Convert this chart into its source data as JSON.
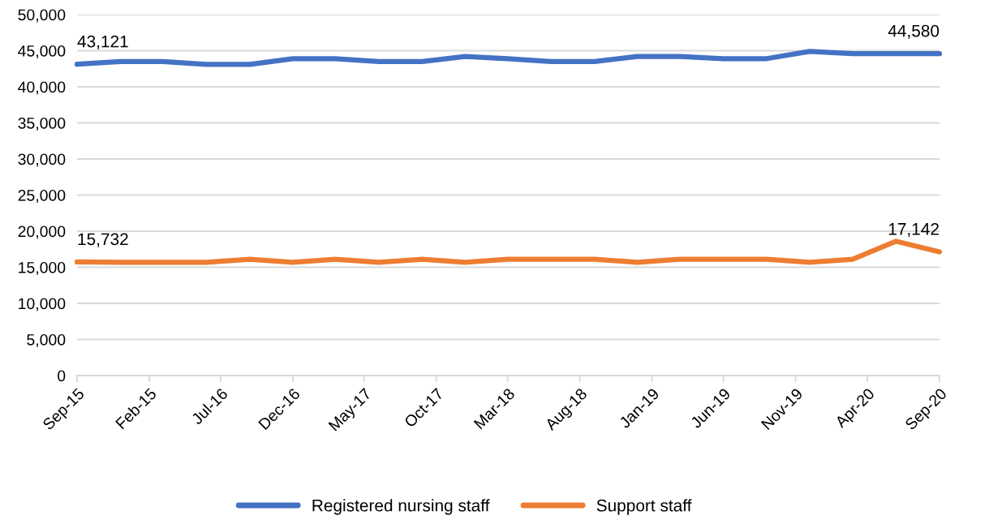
{
  "chart_data": {
    "type": "line",
    "x": [
      "2015-09",
      "2015-12",
      "2016-03",
      "2016-06",
      "2016-09",
      "2016-12",
      "2017-03",
      "2017-06",
      "2017-09",
      "2017-12",
      "2018-03",
      "2018-06",
      "2018-09",
      "2018-12",
      "2019-03",
      "2019-06",
      "2019-09",
      "2019-12",
      "2020-03",
      "2020-06",
      "2020-09"
    ],
    "series": [
      {
        "name": "Registered nursing staff",
        "color": "#4472c4",
        "values": [
          43121,
          43500,
          43500,
          43100,
          43100,
          43900,
          43900,
          43500,
          43500,
          44200,
          43900,
          43500,
          43500,
          44200,
          44200,
          43900,
          43900,
          44900,
          44600,
          44600,
          44580
        ],
        "value_labels": [
          "43,121",
          null,
          null,
          null,
          null,
          null,
          null,
          null,
          null,
          null,
          null,
          null,
          null,
          null,
          null,
          null,
          null,
          null,
          null,
          null,
          "44,580"
        ]
      },
      {
        "name": "Support staff",
        "color": "#ed7d31",
        "values": [
          15732,
          15700,
          15700,
          15700,
          16100,
          15700,
          16100,
          15700,
          16100,
          15700,
          16100,
          16100,
          16100,
          15700,
          16100,
          16100,
          16100,
          15700,
          16100,
          18600,
          17142
        ],
        "value_labels": [
          "15,732",
          null,
          null,
          null,
          null,
          null,
          null,
          null,
          null,
          null,
          null,
          null,
          null,
          null,
          null,
          null,
          null,
          null,
          null,
          null,
          "17,142"
        ]
      }
    ],
    "xlim": [
      "2015-09",
      "2020-09"
    ],
    "xticks": [
      {
        "value": "2015-09",
        "label": "Sep-15"
      },
      {
        "value": "2016-02",
        "label": "Feb-15"
      },
      {
        "value": "2016-07",
        "label": "Jul-16"
      },
      {
        "value": "2016-12",
        "label": "Dec-16"
      },
      {
        "value": "2017-05",
        "label": "May-17"
      },
      {
        "value": "2017-10",
        "label": "Oct-17"
      },
      {
        "value": "2018-03",
        "label": "Mar-18"
      },
      {
        "value": "2018-08",
        "label": "Aug-18"
      },
      {
        "value": "2019-01",
        "label": "Jan-19"
      },
      {
        "value": "2019-06",
        "label": "Jun-19"
      },
      {
        "value": "2019-11",
        "label": "Nov-19"
      },
      {
        "value": "2020-04",
        "label": "Apr-20"
      },
      {
        "value": "2020-09",
        "label": "Sep-20"
      }
    ],
    "ylim": [
      0,
      50000
    ],
    "yticks": [
      0,
      {
        "value": 5000,
        "label": "5,000"
      },
      {
        "value": 10000,
        "label": "10,000"
      },
      {
        "value": 15000,
        "label": "15,000"
      },
      {
        "value": 20000,
        "label": "20,000"
      },
      {
        "value": 25000,
        "label": "25,000"
      },
      {
        "value": 30000,
        "label": "30,000"
      },
      {
        "value": 35000,
        "label": "35,000"
      },
      {
        "value": 40000,
        "label": "40,000"
      },
      {
        "value": 45000,
        "label": "45,000"
      },
      {
        "value": 50000,
        "label": "50,000"
      }
    ],
    "grid": "y",
    "legend": "bottom",
    "marker": "none",
    "line_style": "solid"
  }
}
